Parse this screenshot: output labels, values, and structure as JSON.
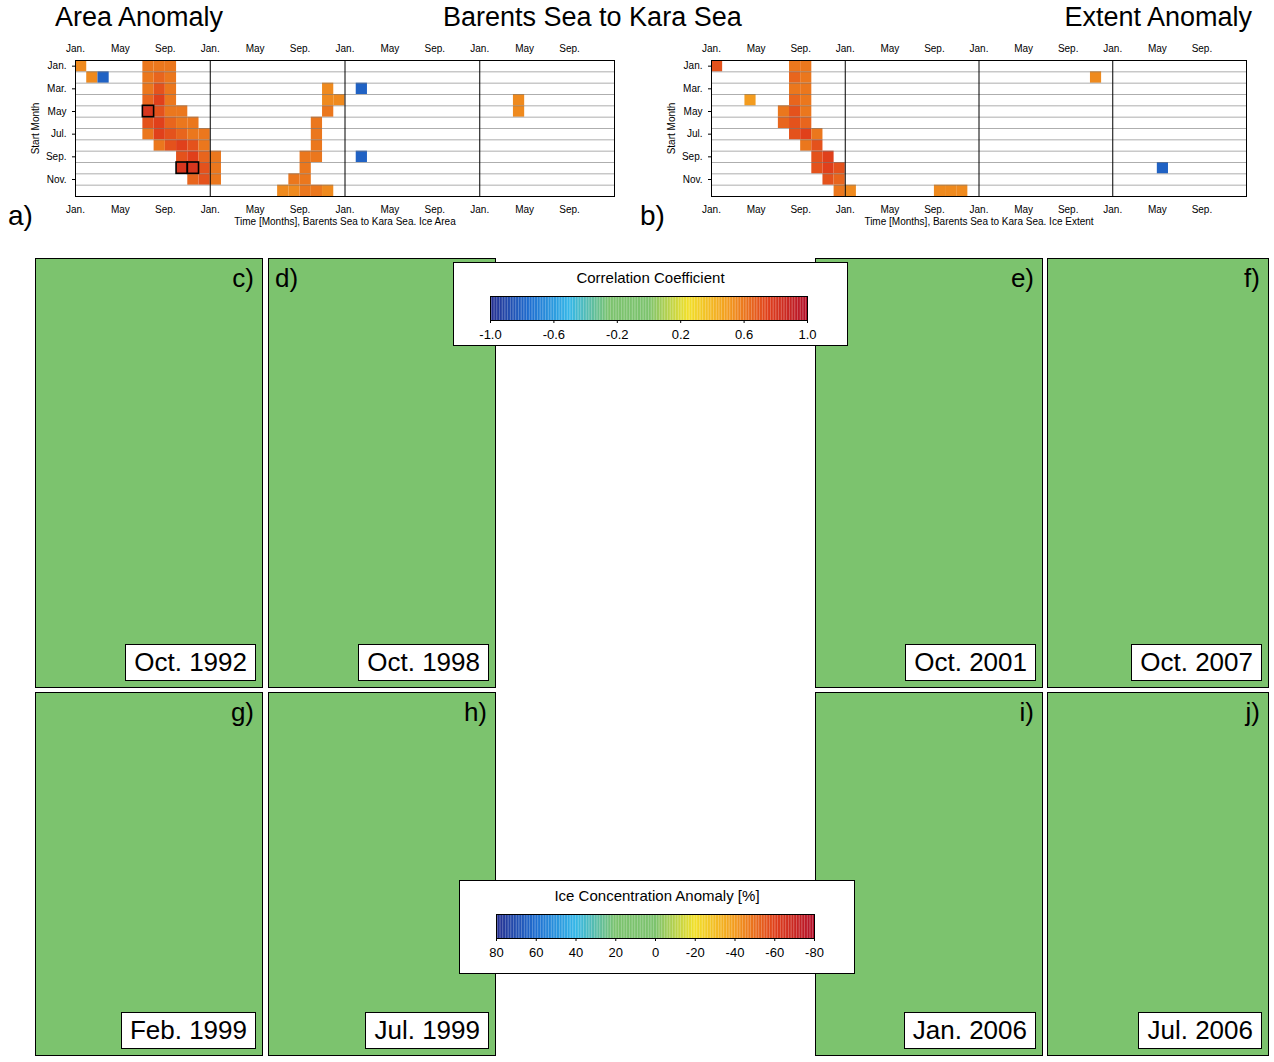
{
  "header": {
    "left": "Area Anomaly",
    "center": "Barents Sea to Kara Sea",
    "right": "Extent Anomaly"
  },
  "chart_data": [
    {
      "type": "heatmap",
      "panel": "a)",
      "xlabel": "Time [Months], Barents Sea to Kara Sea. Ice Area",
      "ylabel": "Start Month",
      "xlim": [
        0,
        48
      ],
      "ylim": [
        12,
        0
      ],
      "grid": true,
      "xticks": [
        {
          "value": 0,
          "label": "Jan."
        },
        {
          "value": 4,
          "label": "May"
        },
        {
          "value": 8,
          "label": "Sep."
        },
        {
          "value": 12,
          "label": "Jan."
        },
        {
          "value": 16,
          "label": "May"
        },
        {
          "value": 20,
          "label": "Sep."
        },
        {
          "value": 24,
          "label": "Jan."
        },
        {
          "value": 28,
          "label": "May"
        },
        {
          "value": 32,
          "label": "Sep."
        },
        {
          "value": 36,
          "label": "Jan."
        },
        {
          "value": 40,
          "label": "May"
        },
        {
          "value": 44,
          "label": "Sep."
        }
      ],
      "yticks": [
        {
          "value": 0.5,
          "label": "Jan."
        },
        {
          "value": 2.5,
          "label": "Mar."
        },
        {
          "value": 4.5,
          "label": "May"
        },
        {
          "value": 6.5,
          "label": "Jul."
        },
        {
          "value": 8.5,
          "label": "Sep."
        },
        {
          "value": 10.5,
          "label": "Nov."
        }
      ],
      "cells": [
        [
          0,
          0,
          0.55
        ],
        [
          0,
          6,
          0.6
        ],
        [
          0,
          7,
          0.6
        ],
        [
          0,
          8,
          0.6
        ],
        [
          1,
          1,
          0.55
        ],
        [
          1,
          2,
          -0.8
        ],
        [
          1,
          6,
          0.6
        ],
        [
          1,
          7,
          0.65
        ],
        [
          1,
          8,
          0.6
        ],
        [
          2,
          6,
          0.6
        ],
        [
          2,
          7,
          0.7
        ],
        [
          2,
          8,
          0.6
        ],
        [
          2,
          22,
          0.55
        ],
        [
          2,
          25,
          -0.8
        ],
        [
          3,
          6,
          0.65
        ],
        [
          3,
          7,
          0.75
        ],
        [
          3,
          8,
          0.6
        ],
        [
          3,
          22,
          0.55
        ],
        [
          3,
          23,
          0.55
        ],
        [
          3,
          39,
          0.55
        ],
        [
          4,
          6,
          0.8
        ],
        [
          4,
          7,
          0.7
        ],
        [
          4,
          8,
          0.6
        ],
        [
          4,
          9,
          0.6
        ],
        [
          4,
          22,
          0.6
        ],
        [
          4,
          39,
          0.55
        ],
        [
          5,
          6,
          0.7
        ],
        [
          5,
          7,
          0.75
        ],
        [
          5,
          8,
          0.65
        ],
        [
          5,
          9,
          0.6
        ],
        [
          5,
          10,
          0.6
        ],
        [
          5,
          21,
          0.6
        ],
        [
          6,
          6,
          0.6
        ],
        [
          6,
          7,
          0.75
        ],
        [
          6,
          8,
          0.7
        ],
        [
          6,
          9,
          0.65
        ],
        [
          6,
          10,
          0.6
        ],
        [
          6,
          11,
          0.6
        ],
        [
          6,
          21,
          0.6
        ],
        [
          7,
          7,
          0.6
        ],
        [
          7,
          8,
          0.7
        ],
        [
          7,
          9,
          0.75
        ],
        [
          7,
          10,
          0.7
        ],
        [
          7,
          11,
          0.6
        ],
        [
          7,
          21,
          0.6
        ],
        [
          8,
          9,
          0.7
        ],
        [
          8,
          10,
          0.75
        ],
        [
          8,
          11,
          0.65
        ],
        [
          8,
          12,
          0.6
        ],
        [
          8,
          20,
          0.6
        ],
        [
          8,
          21,
          0.6
        ],
        [
          8,
          25,
          -0.8
        ],
        [
          9,
          9,
          0.8
        ],
        [
          9,
          10,
          0.8
        ],
        [
          9,
          11,
          0.7
        ],
        [
          9,
          12,
          0.6
        ],
        [
          9,
          20,
          0.6
        ],
        [
          10,
          10,
          0.65
        ],
        [
          10,
          11,
          0.7
        ],
        [
          10,
          12,
          0.6
        ],
        [
          10,
          19,
          0.6
        ],
        [
          10,
          20,
          0.6
        ],
        [
          11,
          18,
          0.55
        ],
        [
          11,
          19,
          0.55
        ],
        [
          11,
          20,
          0.6
        ],
        [
          11,
          21,
          0.6
        ],
        [
          11,
          22,
          0.55
        ]
      ],
      "outlined": [
        [
          4,
          6
        ],
        [
          9,
          9
        ],
        [
          9,
          10
        ]
      ]
    },
    {
      "type": "heatmap",
      "panel": "b)",
      "xlabel": "Time [Months], Barents Sea to Kara Sea. Ice Extent",
      "ylabel": "Start Month",
      "xlim": [
        0,
        48
      ],
      "ylim": [
        12,
        0
      ],
      "grid": true,
      "xticks": [
        {
          "value": 0,
          "label": "Jan."
        },
        {
          "value": 4,
          "label": "May"
        },
        {
          "value": 8,
          "label": "Sep."
        },
        {
          "value": 12,
          "label": "Jan."
        },
        {
          "value": 16,
          "label": "May"
        },
        {
          "value": 20,
          "label": "Sep."
        },
        {
          "value": 24,
          "label": "Jan."
        },
        {
          "value": 28,
          "label": "May"
        },
        {
          "value": 32,
          "label": "Sep."
        },
        {
          "value": 36,
          "label": "Jan."
        },
        {
          "value": 40,
          "label": "May"
        },
        {
          "value": 44,
          "label": "Sep."
        }
      ],
      "yticks": [
        {
          "value": 0.5,
          "label": "Jan."
        },
        {
          "value": 2.5,
          "label": "Mar."
        },
        {
          "value": 4.5,
          "label": "May"
        },
        {
          "value": 6.5,
          "label": "Jul."
        },
        {
          "value": 8.5,
          "label": "Sep."
        },
        {
          "value": 10.5,
          "label": "Nov."
        }
      ],
      "cells": [
        [
          0,
          0,
          0.7
        ],
        [
          0,
          7,
          0.6
        ],
        [
          0,
          8,
          0.6
        ],
        [
          1,
          7,
          0.65
        ],
        [
          1,
          8,
          0.6
        ],
        [
          1,
          34,
          0.55
        ],
        [
          2,
          7,
          0.6
        ],
        [
          2,
          8,
          0.6
        ],
        [
          3,
          3,
          0.5
        ],
        [
          3,
          7,
          0.65
        ],
        [
          3,
          8,
          0.6
        ],
        [
          4,
          6,
          0.6
        ],
        [
          4,
          7,
          0.7
        ],
        [
          4,
          8,
          0.6
        ],
        [
          5,
          6,
          0.65
        ],
        [
          5,
          7,
          0.7
        ],
        [
          5,
          8,
          0.65
        ],
        [
          6,
          7,
          0.7
        ],
        [
          6,
          8,
          0.75
        ],
        [
          6,
          9,
          0.6
        ],
        [
          7,
          8,
          0.6
        ],
        [
          7,
          9,
          0.7
        ],
        [
          8,
          9,
          0.7
        ],
        [
          8,
          10,
          0.75
        ],
        [
          9,
          9,
          0.7
        ],
        [
          9,
          10,
          0.75
        ],
        [
          9,
          11,
          0.7
        ],
        [
          9,
          40,
          -0.8
        ],
        [
          10,
          10,
          0.7
        ],
        [
          10,
          11,
          0.65
        ],
        [
          11,
          11,
          0.6
        ],
        [
          11,
          12,
          0.55
        ],
        [
          11,
          20,
          0.55
        ],
        [
          11,
          21,
          0.55
        ],
        [
          11,
          22,
          0.55
        ]
      ],
      "outlined": []
    }
  ],
  "colorbars": [
    {
      "title": "Correlation Coefficient",
      "range": [
        -1,
        1
      ],
      "ticks": [
        {
          "value": -1,
          "label": "-1.0"
        },
        -0.6,
        -0.2,
        0.2,
        0.6,
        {
          "value": 1,
          "label": "1.0"
        }
      ]
    },
    {
      "title": "Ice Concentration Anomaly [%]",
      "range": [
        80,
        -80
      ],
      "ticks": [
        80,
        60,
        40,
        20,
        0,
        -20,
        -40,
        -60,
        -80
      ]
    }
  ],
  "maps": [
    {
      "panel": "c)",
      "date": "Oct. 1992"
    },
    {
      "panel": "d)",
      "date": "Oct. 1998"
    },
    {
      "panel": "e)",
      "date": "Oct. 2001"
    },
    {
      "panel": "f)",
      "date": "Oct. 2007"
    },
    {
      "panel": "g)",
      "date": "Feb. 1999"
    },
    {
      "panel": "h)",
      "date": "Jul. 1999"
    },
    {
      "panel": "i)",
      "date": "Jan. 2006"
    },
    {
      "panel": "j)",
      "date": "Jul. 2006"
    }
  ]
}
